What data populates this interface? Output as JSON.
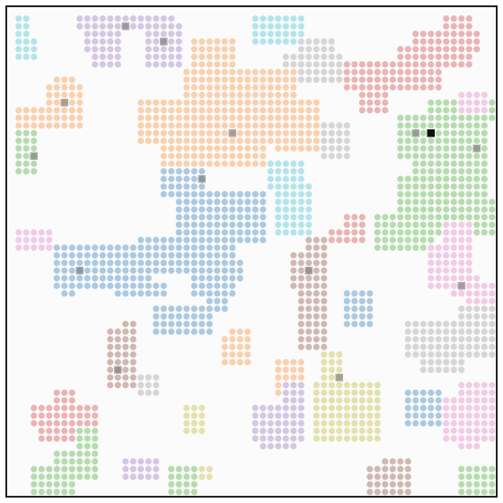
{
  "board": {
    "cols": 64,
    "rows": 64,
    "dot_opacity": 0.55
  },
  "palette": {
    "blue": "#9ebfdc",
    "orange": "#f8c9a0",
    "green": "#a8d6a0",
    "red": "#e6a7a8",
    "purple": "#cdbddf",
    "brown": "#c8aca5",
    "pink": "#f0c2e2",
    "gray": "#cfcfcf",
    "olive": "#dedd9d",
    "cyan": "#a5e0e8",
    "dark_cell": "#6f6f6f",
    "darkest_cell": "#111111"
  },
  "colonies": [
    {
      "name": "cyan-top-left",
      "color": "cyan",
      "rects": [
        [
          1,
          1,
          2,
          4
        ],
        [
          2,
          4,
          3,
          6
        ],
        [
          1,
          5,
          1,
          6
        ]
      ]
    },
    {
      "name": "purple-top-left",
      "color": "purple",
      "rects": [
        [
          9,
          1,
          21,
          2
        ],
        [
          10,
          3,
          14,
          5
        ],
        [
          11,
          6,
          14,
          7
        ],
        [
          18,
          2,
          22,
          7
        ]
      ]
    },
    {
      "name": "cyan-top-mid",
      "color": "cyan",
      "rects": [
        [
          32,
          1,
          38,
          4
        ]
      ]
    },
    {
      "name": "red-top-right",
      "color": "red",
      "rects": [
        [
          57,
          1,
          60,
          3
        ],
        [
          53,
          3,
          61,
          5
        ],
        [
          51,
          5,
          60,
          7
        ],
        [
          44,
          7,
          56,
          10
        ],
        [
          46,
          11,
          49,
          13
        ]
      ]
    },
    {
      "name": "gray-top-right",
      "color": "gray",
      "rects": [
        [
          36,
          6,
          43,
          9
        ],
        [
          38,
          4,
          42,
          5
        ]
      ]
    },
    {
      "name": "orange-left",
      "color": "orange",
      "rects": [
        [
          5,
          10,
          9,
          12
        ],
        [
          1,
          13,
          9,
          15
        ],
        [
          6,
          9,
          8,
          10
        ]
      ]
    },
    {
      "name": "orange-main",
      "color": "orange",
      "rects": [
        [
          24,
          4,
          29,
          8
        ],
        [
          23,
          8,
          37,
          11
        ],
        [
          17,
          12,
          40,
          17
        ],
        [
          20,
          17,
          33,
          20
        ],
        [
          35,
          15,
          40,
          18
        ],
        [
          27,
          11,
          31,
          12
        ]
      ]
    },
    {
      "name": "green-left",
      "color": "green",
      "rects": [
        [
          1,
          16,
          3,
          21
        ]
      ]
    },
    {
      "name": "gray-mid",
      "color": "gray",
      "rects": [
        [
          41,
          15,
          44,
          19
        ]
      ]
    },
    {
      "name": "green-right",
      "color": "green",
      "rects": [
        [
          51,
          14,
          62,
          19
        ],
        [
          55,
          12,
          63,
          14
        ],
        [
          53,
          19,
          62,
          24
        ],
        [
          51,
          22,
          60,
          29
        ],
        [
          48,
          27,
          55,
          31
        ],
        [
          59,
          25,
          63,
          29
        ]
      ]
    },
    {
      "name": "pink-right-top",
      "color": "pink",
      "rects": [
        [
          59,
          11,
          62,
          13
        ]
      ]
    },
    {
      "name": "cyan-mid",
      "color": "cyan",
      "rects": [
        [
          34,
          20,
          38,
          23
        ],
        [
          35,
          23,
          39,
          29
        ]
      ]
    },
    {
      "name": "blue-main",
      "color": "blue",
      "rects": [
        [
          20,
          21,
          25,
          24
        ],
        [
          22,
          24,
          33,
          30
        ],
        [
          17,
          30,
          29,
          34
        ],
        [
          24,
          33,
          30,
          35
        ],
        [
          6,
          31,
          18,
          36
        ],
        [
          7,
          36,
          8,
          37
        ],
        [
          14,
          36,
          20,
          37
        ],
        [
          12,
          35,
          17,
          36
        ],
        [
          24,
          36,
          29,
          37
        ],
        [
          26,
          37,
          28,
          39
        ],
        [
          19,
          39,
          26,
          42
        ]
      ]
    },
    {
      "name": "red-mid",
      "color": "red",
      "rects": [
        [
          44,
          27,
          46,
          30
        ],
        [
          42,
          29,
          46,
          30
        ]
      ]
    },
    {
      "name": "pink-left",
      "color": "pink",
      "rects": [
        [
          1,
          29,
          5,
          31
        ]
      ]
    },
    {
      "name": "pink-right",
      "color": "pink",
      "rects": [
        [
          57,
          28,
          60,
          31
        ],
        [
          55,
          31,
          60,
          36
        ],
        [
          58,
          35,
          61,
          37
        ],
        [
          60,
          36,
          63,
          38
        ]
      ]
    },
    {
      "name": "brown-mid",
      "color": "brown",
      "rects": [
        [
          39,
          30,
          41,
          32
        ],
        [
          37,
          32,
          41,
          36
        ],
        [
          38,
          36,
          41,
          44
        ]
      ]
    },
    {
      "name": "blue-right",
      "color": "blue",
      "rects": [
        [
          44,
          37,
          47,
          41
        ]
      ]
    },
    {
      "name": "brown-left",
      "color": "brown",
      "rects": [
        [
          15,
          41,
          16,
          42
        ],
        [
          13,
          42,
          16,
          49
        ]
      ]
    },
    {
      "name": "orange-small",
      "color": "orange",
      "rects": [
        [
          29,
          42,
          31,
          46
        ],
        [
          28,
          43,
          31,
          46
        ]
      ]
    },
    {
      "name": "gray-right",
      "color": "gray",
      "rects": [
        [
          52,
          41,
          63,
          45
        ],
        [
          54,
          44,
          59,
          47
        ],
        [
          59,
          39,
          63,
          41
        ]
      ]
    },
    {
      "name": "olive-mid",
      "color": "olive",
      "rects": [
        [
          41,
          45,
          43,
          52
        ],
        [
          40,
          49,
          48,
          56
        ],
        [
          43,
          52,
          48,
          56
        ]
      ]
    },
    {
      "name": "orange-mid-bottom",
      "color": "orange",
      "rects": [
        [
          35,
          46,
          38,
          50
        ]
      ]
    },
    {
      "name": "gray-left-bottom",
      "color": "gray",
      "rects": [
        [
          17,
          48,
          19,
          50
        ]
      ]
    },
    {
      "name": "red-bottom-left",
      "color": "red",
      "rects": [
        [
          6,
          50,
          8,
          52
        ],
        [
          3,
          52,
          11,
          54
        ],
        [
          4,
          54,
          10,
          56
        ]
      ]
    },
    {
      "name": "purple-bottom",
      "color": "purple",
      "rects": [
        [
          36,
          49,
          38,
          51
        ],
        [
          32,
          52,
          38,
          56
        ],
        [
          33,
          56,
          37,
          57
        ]
      ]
    },
    {
      "name": "blue-bottom-right",
      "color": "blue",
      "rects": [
        [
          52,
          50,
          56,
          54
        ]
      ]
    },
    {
      "name": "pink-bottom-right",
      "color": "pink",
      "rects": [
        [
          59,
          49,
          63,
          51
        ],
        [
          57,
          51,
          63,
          56
        ],
        [
          59,
          56,
          61,
          57
        ]
      ]
    },
    {
      "name": "olive-bottom-left",
      "color": "olive",
      "rects": [
        [
          23,
          52,
          25,
          55
        ]
      ]
    },
    {
      "name": "green-bottom-left",
      "color": "green",
      "rects": [
        [
          9,
          55,
          11,
          58
        ],
        [
          6,
          58,
          11,
          61
        ],
        [
          3,
          60,
          8,
          63
        ]
      ]
    },
    {
      "name": "purple-bottom-left",
      "color": "purple",
      "rects": [
        [
          15,
          59,
          19,
          61
        ]
      ]
    },
    {
      "name": "green-bottom-mid",
      "color": "green",
      "rects": [
        [
          21,
          60,
          24,
          63
        ]
      ]
    },
    {
      "name": "olive-bottom-mid",
      "color": "olive",
      "rects": [
        [
          25,
          60,
          26,
          61
        ]
      ]
    },
    {
      "name": "brown-bottom",
      "color": "brown",
      "rects": [
        [
          49,
          59,
          52,
          62
        ],
        [
          47,
          60,
          52,
          63
        ]
      ]
    },
    {
      "name": "green-bottom-right",
      "color": "green",
      "rects": [
        [
          59,
          60,
          63,
          63
        ]
      ]
    }
  ],
  "highlights": [
    {
      "col": 55,
      "row": 16,
      "color": "darkest_cell"
    },
    {
      "col": 61,
      "row": 18,
      "color": "dark_cell"
    },
    {
      "col": 25,
      "row": 22,
      "color": "dark_cell"
    },
    {
      "col": 9,
      "row": 34,
      "color": "dark_cell"
    },
    {
      "col": 39,
      "row": 34,
      "color": "dark_cell"
    },
    {
      "col": 3,
      "row": 19,
      "color": "dark_cell"
    },
    {
      "col": 15,
      "row": 2,
      "color": "dark_cell"
    },
    {
      "col": 20,
      "row": 4,
      "color": "dark_cell"
    },
    {
      "col": 7,
      "row": 12,
      "color": "dark_cell"
    },
    {
      "col": 29,
      "row": 16,
      "color": "dark_cell"
    },
    {
      "col": 59,
      "row": 36,
      "color": "dark_cell"
    },
    {
      "col": 14,
      "row": 47,
      "color": "dark_cell"
    },
    {
      "col": 43,
      "row": 48,
      "color": "dark_cell"
    },
    {
      "col": 53,
      "row": 16,
      "color": "dark_cell"
    }
  ]
}
